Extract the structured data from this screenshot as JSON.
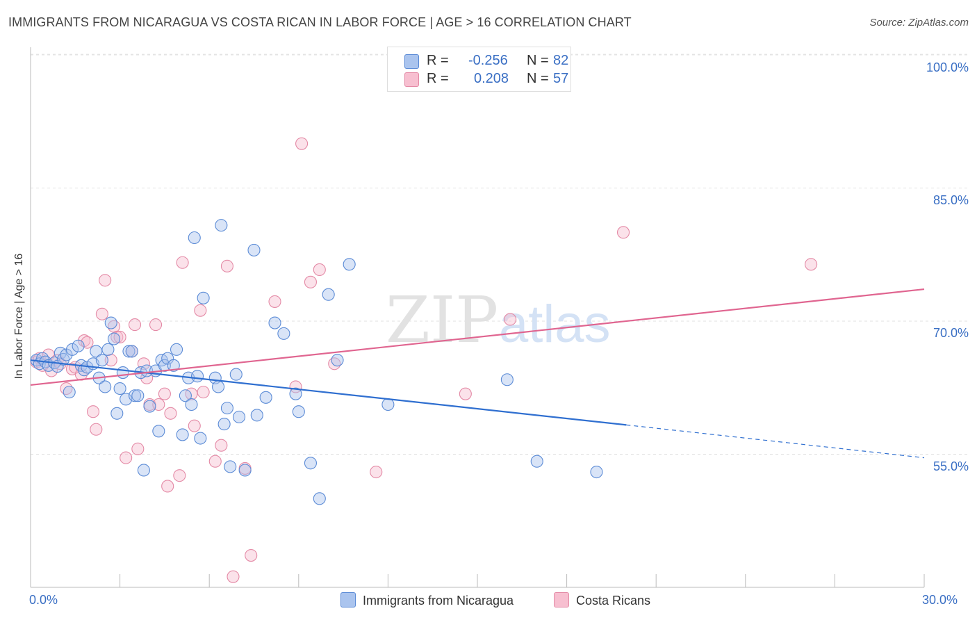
{
  "header": {
    "title": "IMMIGRANTS FROM NICARAGUA VS COSTA RICAN IN LABOR FORCE | AGE > 16 CORRELATION CHART",
    "source": "Source: ZipAtlas.com"
  },
  "watermark": {
    "zip": "ZIP",
    "atlas": "atlas"
  },
  "legend": {
    "rows": [
      {
        "r_label": "R =",
        "r_value": "-0.256",
        "n_label": "N =",
        "n_value": "82",
        "color": "#aac4ee",
        "border": "#5b8bd6"
      },
      {
        "r_label": "R =",
        "r_value": "0.208",
        "n_label": "N =",
        "n_value": "57",
        "color": "#f7bfd0",
        "border": "#e48aa6"
      }
    ]
  },
  "chart_data": {
    "type": "scatter",
    "title": "IMMIGRANTS FROM NICARAGUA VS COSTA RICAN IN LABOR FORCE | AGE > 16 CORRELATION CHART",
    "xlabel": "",
    "ylabel": "In Labor Force | Age > 16",
    "xlim": [
      0,
      30
    ],
    "ylim": [
      40,
      102
    ],
    "x_tick_labels": [
      "0.0%",
      "30.0%"
    ],
    "y_ticks": [
      55,
      70,
      85,
      100
    ],
    "y_tick_labels": [
      "55.0%",
      "70.0%",
      "85.0%",
      "100.0%"
    ],
    "grid": true,
    "legend_position": "top-center",
    "series": [
      {
        "name": "Immigrants from Nicaragua",
        "color": "#aac4ee",
        "stroke": "#5b8bd6",
        "trend": {
          "x0": 0,
          "y0": 65.6,
          "x1": 20,
          "y1": 58.3,
          "dashed_to": 30,
          "dashed_y": 54.6,
          "color": "#2f6fd0"
        },
        "points": [
          [
            0.2,
            65.6
          ],
          [
            0.3,
            65.2
          ],
          [
            0.4,
            65.8
          ],
          [
            0.5,
            65.4
          ],
          [
            0.6,
            65.0
          ],
          [
            0.8,
            65.3
          ],
          [
            0.9,
            64.9
          ],
          [
            1.0,
            66.4
          ],
          [
            1.1,
            65.7
          ],
          [
            1.2,
            66.2
          ],
          [
            1.4,
            66.8
          ],
          [
            1.3,
            62.0
          ],
          [
            1.6,
            67.2
          ],
          [
            1.7,
            65.0
          ],
          [
            1.8,
            64.5
          ],
          [
            1.9,
            64.8
          ],
          [
            2.1,
            65.2
          ],
          [
            2.2,
            66.6
          ],
          [
            2.3,
            63.6
          ],
          [
            2.4,
            65.6
          ],
          [
            2.5,
            62.6
          ],
          [
            2.6,
            66.8
          ],
          [
            2.7,
            69.8
          ],
          [
            2.8,
            68.0
          ],
          [
            2.9,
            59.6
          ],
          [
            3.0,
            62.4
          ],
          [
            3.1,
            64.2
          ],
          [
            3.2,
            61.2
          ],
          [
            3.3,
            66.6
          ],
          [
            3.4,
            66.6
          ],
          [
            3.5,
            61.6
          ],
          [
            3.6,
            61.6
          ],
          [
            3.7,
            64.2
          ],
          [
            3.8,
            53.2
          ],
          [
            3.9,
            64.4
          ],
          [
            4.0,
            60.4
          ],
          [
            4.2,
            64.4
          ],
          [
            4.3,
            57.6
          ],
          [
            4.4,
            65.6
          ],
          [
            4.5,
            65.0
          ],
          [
            4.6,
            65.8
          ],
          [
            4.8,
            65.0
          ],
          [
            4.9,
            66.8
          ],
          [
            5.1,
            57.2
          ],
          [
            5.2,
            61.6
          ],
          [
            5.3,
            63.6
          ],
          [
            5.4,
            60.6
          ],
          [
            5.5,
            79.4
          ],
          [
            5.6,
            63.8
          ],
          [
            5.7,
            56.8
          ],
          [
            5.8,
            72.6
          ],
          [
            6.2,
            63.6
          ],
          [
            6.3,
            62.6
          ],
          [
            6.4,
            80.8
          ],
          [
            6.5,
            58.4
          ],
          [
            6.6,
            60.2
          ],
          [
            6.7,
            53.6
          ],
          [
            6.9,
            64.0
          ],
          [
            7.0,
            59.2
          ],
          [
            7.2,
            53.2
          ],
          [
            7.5,
            78.0
          ],
          [
            7.6,
            59.4
          ],
          [
            7.9,
            61.4
          ],
          [
            8.2,
            69.8
          ],
          [
            8.5,
            68.6
          ],
          [
            8.9,
            61.8
          ],
          [
            9.0,
            59.8
          ],
          [
            9.4,
            54.0
          ],
          [
            9.7,
            50.0
          ],
          [
            10.0,
            73.0
          ],
          [
            10.3,
            65.6
          ],
          [
            10.7,
            76.4
          ],
          [
            12.0,
            60.6
          ],
          [
            16.0,
            63.4
          ],
          [
            17.0,
            54.2
          ],
          [
            19.0,
            53.0
          ]
        ]
      },
      {
        "name": "Costa Ricans",
        "color": "#f7bfd0",
        "stroke": "#e48aa6",
        "trend": {
          "x0": 0,
          "y0": 62.8,
          "x1": 30,
          "y1": 73.6,
          "color": "#e06590"
        },
        "points": [
          [
            0.2,
            65.4
          ],
          [
            0.3,
            65.8
          ],
          [
            0.4,
            65.0
          ],
          [
            0.6,
            66.2
          ],
          [
            0.7,
            64.4
          ],
          [
            0.9,
            65.6
          ],
          [
            1.0,
            65.2
          ],
          [
            1.2,
            62.4
          ],
          [
            1.4,
            64.6
          ],
          [
            1.5,
            64.8
          ],
          [
            1.7,
            64.0
          ],
          [
            1.8,
            67.8
          ],
          [
            1.9,
            67.6
          ],
          [
            2.1,
            59.8
          ],
          [
            2.2,
            57.8
          ],
          [
            2.4,
            70.8
          ],
          [
            2.5,
            74.6
          ],
          [
            2.7,
            65.6
          ],
          [
            2.8,
            69.4
          ],
          [
            2.9,
            68.2
          ],
          [
            3.0,
            68.2
          ],
          [
            3.2,
            54.6
          ],
          [
            3.4,
            66.6
          ],
          [
            3.5,
            69.6
          ],
          [
            3.6,
            55.6
          ],
          [
            3.8,
            65.2
          ],
          [
            3.9,
            63.6
          ],
          [
            4.0,
            60.6
          ],
          [
            4.2,
            69.6
          ],
          [
            4.3,
            60.6
          ],
          [
            4.5,
            61.8
          ],
          [
            4.6,
            51.4
          ],
          [
            4.7,
            59.6
          ],
          [
            5.0,
            52.6
          ],
          [
            5.1,
            76.6
          ],
          [
            5.4,
            61.8
          ],
          [
            5.5,
            58.2
          ],
          [
            5.7,
            71.2
          ],
          [
            5.8,
            62.0
          ],
          [
            6.2,
            54.2
          ],
          [
            6.4,
            56.0
          ],
          [
            6.6,
            76.2
          ],
          [
            6.8,
            41.2
          ],
          [
            7.2,
            53.4
          ],
          [
            7.4,
            43.6
          ],
          [
            8.2,
            72.2
          ],
          [
            8.9,
            62.6
          ],
          [
            9.1,
            90.0
          ],
          [
            9.4,
            74.4
          ],
          [
            9.7,
            75.8
          ],
          [
            10.2,
            65.2
          ],
          [
            11.6,
            53.0
          ],
          [
            14.6,
            61.8
          ],
          [
            16.1,
            70.2
          ],
          [
            19.9,
            80.0
          ],
          [
            26.2,
            76.4
          ]
        ]
      }
    ]
  }
}
